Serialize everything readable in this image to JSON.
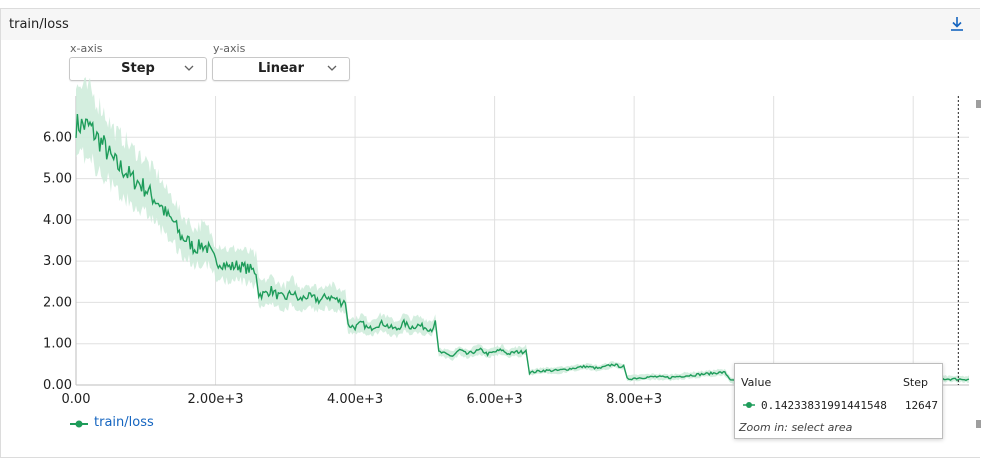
{
  "card": {
    "title": "train/loss"
  },
  "controls": {
    "x_axis_label": "x-axis",
    "x_axis_value": "Step",
    "y_axis_label": "y-axis",
    "y_axis_value": "Linear"
  },
  "icons": {
    "download": "download-icon",
    "chevron": "chevron-down-icon"
  },
  "colors": {
    "series": "#1e9c5a",
    "band": "#cdebd9",
    "link": "#1565c0"
  },
  "tooltip": {
    "value_header": "Value",
    "step_header": "Step",
    "value": "0.14233831991441548",
    "step": "12647",
    "hint": "Zoom in: select area"
  },
  "chart_data": {
    "type": "line",
    "title": "",
    "xlabel": "",
    "ylabel": "",
    "xlim": [
      0,
      12800
    ],
    "ylim": [
      0,
      7
    ],
    "x_ticks": [
      0,
      2000,
      4000,
      6000,
      8000
    ],
    "x_tick_labels": [
      "0.00",
      "2.00e+3",
      "4.00e+3",
      "6.00e+3",
      "8.00e+3"
    ],
    "y_ticks": [
      0,
      1,
      2,
      3,
      4,
      5,
      6
    ],
    "y_tick_labels": [
      "0.00",
      "1.00",
      "2.00",
      "3.00",
      "4.00",
      "5.00",
      "6.00"
    ],
    "legend_position": "bottom-left",
    "grid": true,
    "hover_step": 12647,
    "series": [
      {
        "name": "train/loss",
        "x": [
          0,
          100,
          200,
          300,
          400,
          500,
          600,
          700,
          800,
          900,
          1000,
          1100,
          1200,
          1300,
          1400,
          1500,
          1600,
          1700,
          1800,
          1900,
          2000,
          2100,
          2200,
          2300,
          2400,
          2500,
          2580,
          2620,
          2700,
          2800,
          2900,
          3000,
          3100,
          3200,
          3300,
          3400,
          3500,
          3600,
          3700,
          3800,
          3860,
          3900,
          4000,
          4100,
          4200,
          4300,
          4400,
          4500,
          4600,
          4700,
          4800,
          4900,
          5000,
          5100,
          5150,
          5200,
          5300,
          5400,
          5500,
          5600,
          5700,
          5800,
          5900,
          6000,
          6100,
          6200,
          6300,
          6400,
          6450,
          6500,
          6700,
          6900,
          7100,
          7300,
          7500,
          7700,
          7800,
          7850,
          7900,
          8100,
          8300,
          8500,
          8700,
          8900,
          9100,
          9200,
          9300,
          9400,
          9600,
          9800,
          10000,
          10200,
          10400,
          10600,
          10800,
          11000,
          11200,
          11400,
          11600,
          11800,
          12000,
          12200,
          12400,
          12647,
          12800
        ],
        "y": [
          6.3,
          6.3,
          6.25,
          6.0,
          5.8,
          5.5,
          5.3,
          5.2,
          5.0,
          4.9,
          4.75,
          4.55,
          4.4,
          4.1,
          3.95,
          3.6,
          3.5,
          3.3,
          3.4,
          3.3,
          3.0,
          2.95,
          2.85,
          2.9,
          2.85,
          2.8,
          2.75,
          2.2,
          2.2,
          2.3,
          2.15,
          2.1,
          2.25,
          2.05,
          2.15,
          2.1,
          2.05,
          2.15,
          2.1,
          2.0,
          2.05,
          1.45,
          1.4,
          1.5,
          1.35,
          1.45,
          1.5,
          1.4,
          1.35,
          1.5,
          1.4,
          1.45,
          1.4,
          1.35,
          1.5,
          0.8,
          0.75,
          0.7,
          0.85,
          0.75,
          0.8,
          0.85,
          0.75,
          0.8,
          0.85,
          0.75,
          0.8,
          0.8,
          0.85,
          0.3,
          0.35,
          0.35,
          0.4,
          0.45,
          0.4,
          0.5,
          0.45,
          0.45,
          0.15,
          0.18,
          0.2,
          0.18,
          0.22,
          0.25,
          0.28,
          0.3,
          0.3,
          0.1,
          0.12,
          0.12,
          0.15,
          0.14,
          0.16,
          0.15,
          0.14,
          0.16,
          0.15,
          0.14,
          0.15,
          0.16,
          0.15,
          0.14,
          0.15,
          0.14,
          0.14
        ]
      }
    ]
  }
}
